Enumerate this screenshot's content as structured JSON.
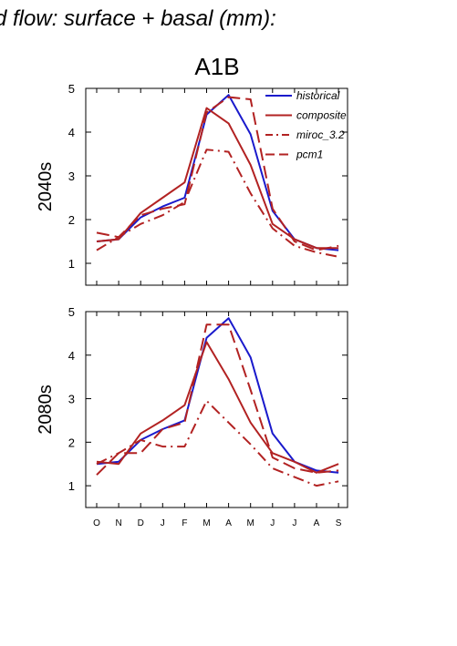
{
  "header_title": "d flow: surface + basal (mm):",
  "scenario": "A1B",
  "colors": {
    "historical": "#1a1acc",
    "red": "#b22222"
  },
  "chart_data": [
    {
      "type": "line",
      "ylabel": "2040s",
      "categories": [
        "O",
        "N",
        "D",
        "J",
        "F",
        "M",
        "A",
        "M",
        "J",
        "J",
        "A",
        "S"
      ],
      "ylim": [
        0.5,
        5.0
      ],
      "yticks": [
        1,
        2,
        3,
        4,
        5
      ],
      "legend_position": "top-right",
      "series": [
        {
          "name": "historical",
          "style": "solid",
          "color": "#1a1acc",
          "values": [
            1.5,
            1.55,
            2.05,
            2.3,
            2.5,
            4.4,
            4.85,
            3.95,
            2.2,
            1.55,
            1.35,
            1.3
          ]
        },
        {
          "name": "composite",
          "style": "solid",
          "color": "#b22222",
          "values": [
            1.5,
            1.55,
            2.15,
            2.5,
            2.85,
            4.55,
            4.2,
            3.25,
            1.9,
            1.55,
            1.35,
            1.35
          ]
        },
        {
          "name": "miroc_3.2",
          "style": "dashdot",
          "color": "#b22222",
          "values": [
            1.3,
            1.6,
            1.9,
            2.1,
            2.4,
            3.6,
            3.55,
            2.6,
            1.8,
            1.4,
            1.25,
            1.15
          ]
        },
        {
          "name": "pcm1",
          "style": "dashed",
          "color": "#b22222",
          "values": [
            1.7,
            1.6,
            2.1,
            2.25,
            2.35,
            4.45,
            4.8,
            4.75,
            2.25,
            1.5,
            1.3,
            1.4
          ]
        }
      ]
    },
    {
      "type": "line",
      "ylabel": "2080s",
      "categories": [
        "O",
        "N",
        "D",
        "J",
        "F",
        "M",
        "A",
        "M",
        "J",
        "J",
        "A",
        "S"
      ],
      "ylim": [
        0.5,
        5.0
      ],
      "yticks": [
        1,
        2,
        3,
        4,
        5
      ],
      "series": [
        {
          "name": "historical",
          "style": "solid",
          "color": "#1a1acc",
          "values": [
            1.5,
            1.55,
            2.05,
            2.3,
            2.5,
            4.4,
            4.85,
            3.95,
            2.2,
            1.55,
            1.35,
            1.3
          ]
        },
        {
          "name": "composite",
          "style": "solid",
          "color": "#b22222",
          "values": [
            1.55,
            1.5,
            2.2,
            2.5,
            2.85,
            4.3,
            3.45,
            2.45,
            1.75,
            1.55,
            1.3,
            1.5
          ]
        },
        {
          "name": "miroc_3.2",
          "style": "dashdot",
          "color": "#b22222",
          "values": [
            1.5,
            1.75,
            2.05,
            1.9,
            1.9,
            2.95,
            2.45,
            1.95,
            1.4,
            1.2,
            1.0,
            1.1
          ]
        },
        {
          "name": "pcm1",
          "style": "dashed",
          "color": "#b22222",
          "values": [
            1.25,
            1.75,
            1.75,
            2.3,
            2.45,
            4.7,
            4.7,
            3.2,
            1.65,
            1.4,
            1.3,
            1.35
          ]
        }
      ]
    }
  ]
}
